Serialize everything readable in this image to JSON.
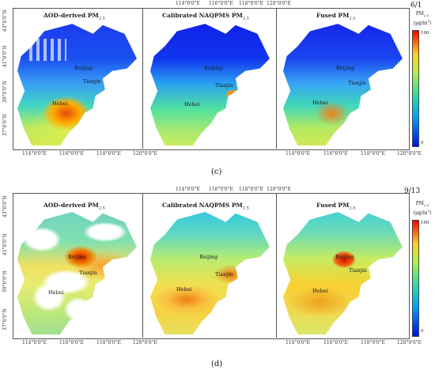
{
  "figure_c": {
    "date": "6/1",
    "caption": "(c)",
    "titles": {
      "aod": "AOD-derived PM",
      "naqpms": "Calibrated NAQPMS PM",
      "fused": "Fused PM",
      "sub": "2.5"
    },
    "top_ticks": [
      "114°0'0\"E",
      "116°0'0\"E",
      "118°0'0\"E",
      "120°0'0\"E"
    ],
    "bottom_ticks": [
      "114°0'0\"E",
      "116°0'0\"E",
      "118°0'0\"E",
      "120°0'0\"E",
      "114°0'0\"E",
      "116°0'0\"E",
      "118°0'0\"E",
      "120°0'0\"E"
    ],
    "left_ticks": [
      "43°0'0\"N",
      "41°0'0\"N",
      "39°0'0\"N",
      "37°0'0\"N"
    ],
    "cities": {
      "beijing": "Beijing",
      "tianjin": "Tianjin",
      "hebei": "Hebei"
    },
    "colorbar": {
      "label_line1": "PM",
      "label_sub": "2.5",
      "label_line2": "(μg/m",
      "label_sup": "3",
      "label_end": ")",
      "max": "100",
      "min": "0"
    }
  },
  "figure_d": {
    "date": "9/13",
    "caption": "(d)",
    "titles": {
      "aod": "AOD-derived PM",
      "naqpms": "Calibrated NAQPMS PM",
      "fused": "Fused PM",
      "sub": "2.5"
    },
    "top_ticks": [
      "114°0'0\"E",
      "116°0'0\"E",
      "118°0'0\"E",
      "120°0'0\"E"
    ],
    "bottom_ticks": [
      "114°0'0\"E",
      "116°0'0\"E",
      "118°0'0\"E",
      "120°0'0\"E",
      "114°0'0\"E",
      "116°0'0\"E",
      "118°0'0\"E",
      "120°0'0\"E"
    ],
    "left_ticks": [
      "43°0'0\"N",
      "41°0'0\"N",
      "39°0'0\"N",
      "37°0'0\"N"
    ],
    "cities": {
      "beijing": "Beijing",
      "tianjin": "Tianjin",
      "hebei": "Hebei"
    },
    "colorbar": {
      "label_line1": "PM",
      "label_sub": "2.5",
      "label_line2": "(μg/m",
      "label_sup": "3",
      "label_end": ")",
      "max": "100",
      "min": "0"
    }
  },
  "colors": {
    "low": "#0a1ee6",
    "mid": "#3fd7b0",
    "high": "#f8e23a",
    "max": "#e80000",
    "water_gap": "#ffffff"
  }
}
